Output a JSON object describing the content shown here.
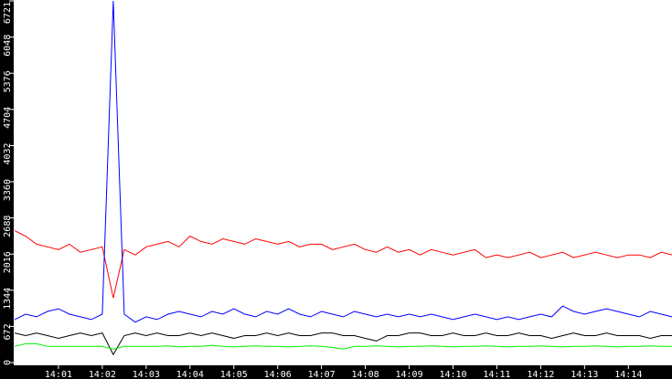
{
  "chart_data": {
    "type": "line",
    "title": "",
    "xlabel": "",
    "ylabel": "",
    "x_unit": "minutes after 14:00",
    "xlim": [
      0,
      15
    ],
    "ylim": [
      0,
      6721
    ],
    "grid": false,
    "legend": "none",
    "y_ticks": [
      0,
      672,
      1344,
      2016,
      2688,
      3360,
      4032,
      4704,
      5376,
      6048,
      6721
    ],
    "x_ticks": [
      {
        "value": 1,
        "label": "14:01"
      },
      {
        "value": 2,
        "label": "14:02"
      },
      {
        "value": 3,
        "label": "14:03"
      },
      {
        "value": 4,
        "label": "14:04"
      },
      {
        "value": 5,
        "label": "14:05"
      },
      {
        "value": 6,
        "label": "14:06"
      },
      {
        "value": 7,
        "label": "14:07"
      },
      {
        "value": 8,
        "label": "14:08"
      },
      {
        "value": 9,
        "label": "14:09"
      },
      {
        "value": 10,
        "label": "14:10"
      },
      {
        "value": 11,
        "label": "14:11"
      },
      {
        "value": 12,
        "label": "14:12"
      },
      {
        "value": 13,
        "label": "14:13"
      },
      {
        "value": 14,
        "label": "14:14"
      }
    ],
    "x_step": 0.25,
    "series": [
      {
        "color": "#ff0000",
        "values": [
          2450,
          2350,
          2200,
          2150,
          2100,
          2200,
          2050,
          2100,
          2150,
          1200,
          2100,
          2000,
          2150,
          2200,
          2250,
          2150,
          2350,
          2250,
          2200,
          2300,
          2250,
          2200,
          2300,
          2250,
          2200,
          2250,
          2150,
          2200,
          2200,
          2100,
          2150,
          2200,
          2100,
          2050,
          2150,
          2050,
          2100,
          2000,
          2100,
          2050,
          2000,
          2050,
          2100,
          1950,
          2000,
          1950,
          2000,
          2050,
          1950,
          2000,
          2050,
          1950,
          2000,
          2050,
          2000,
          1950,
          2000,
          2000,
          1950,
          2050,
          2000
        ]
      },
      {
        "color": "#0000ff",
        "values": [
          800,
          900,
          850,
          950,
          1000,
          900,
          850,
          800,
          900,
          6721,
          900,
          750,
          850,
          800,
          900,
          950,
          900,
          850,
          950,
          900,
          1000,
          900,
          850,
          950,
          900,
          1000,
          900,
          850,
          950,
          900,
          850,
          950,
          900,
          850,
          900,
          850,
          900,
          850,
          900,
          850,
          800,
          850,
          900,
          850,
          800,
          850,
          800,
          850,
          900,
          850,
          1050,
          950,
          900,
          950,
          1000,
          950,
          900,
          850,
          950,
          900,
          850
        ]
      },
      {
        "color": "#000000",
        "values": [
          550,
          500,
          550,
          500,
          450,
          500,
          550,
          500,
          550,
          150,
          500,
          550,
          500,
          550,
          500,
          500,
          550,
          500,
          550,
          500,
          450,
          500,
          500,
          550,
          500,
          550,
          500,
          500,
          550,
          550,
          500,
          500,
          450,
          400,
          500,
          500,
          550,
          550,
          500,
          500,
          550,
          500,
          500,
          550,
          500,
          500,
          550,
          500,
          500,
          450,
          500,
          550,
          500,
          500,
          550,
          500,
          500,
          500,
          450,
          500,
          500
        ]
      },
      {
        "color": "#00ee00",
        "values": [
          300,
          350,
          350,
          300,
          300,
          300,
          300,
          300,
          300,
          250,
          300,
          300,
          300,
          300,
          310,
          290,
          300,
          300,
          320,
          300,
          290,
          300,
          310,
          300,
          300,
          290,
          300,
          310,
          300,
          280,
          250,
          300,
          300,
          310,
          300,
          290,
          300,
          300,
          310,
          300,
          290,
          300,
          300,
          310,
          300,
          290,
          300,
          300,
          310,
          300,
          290,
          300,
          300,
          310,
          300,
          290,
          300,
          300,
          310,
          300,
          300
        ]
      }
    ]
  }
}
